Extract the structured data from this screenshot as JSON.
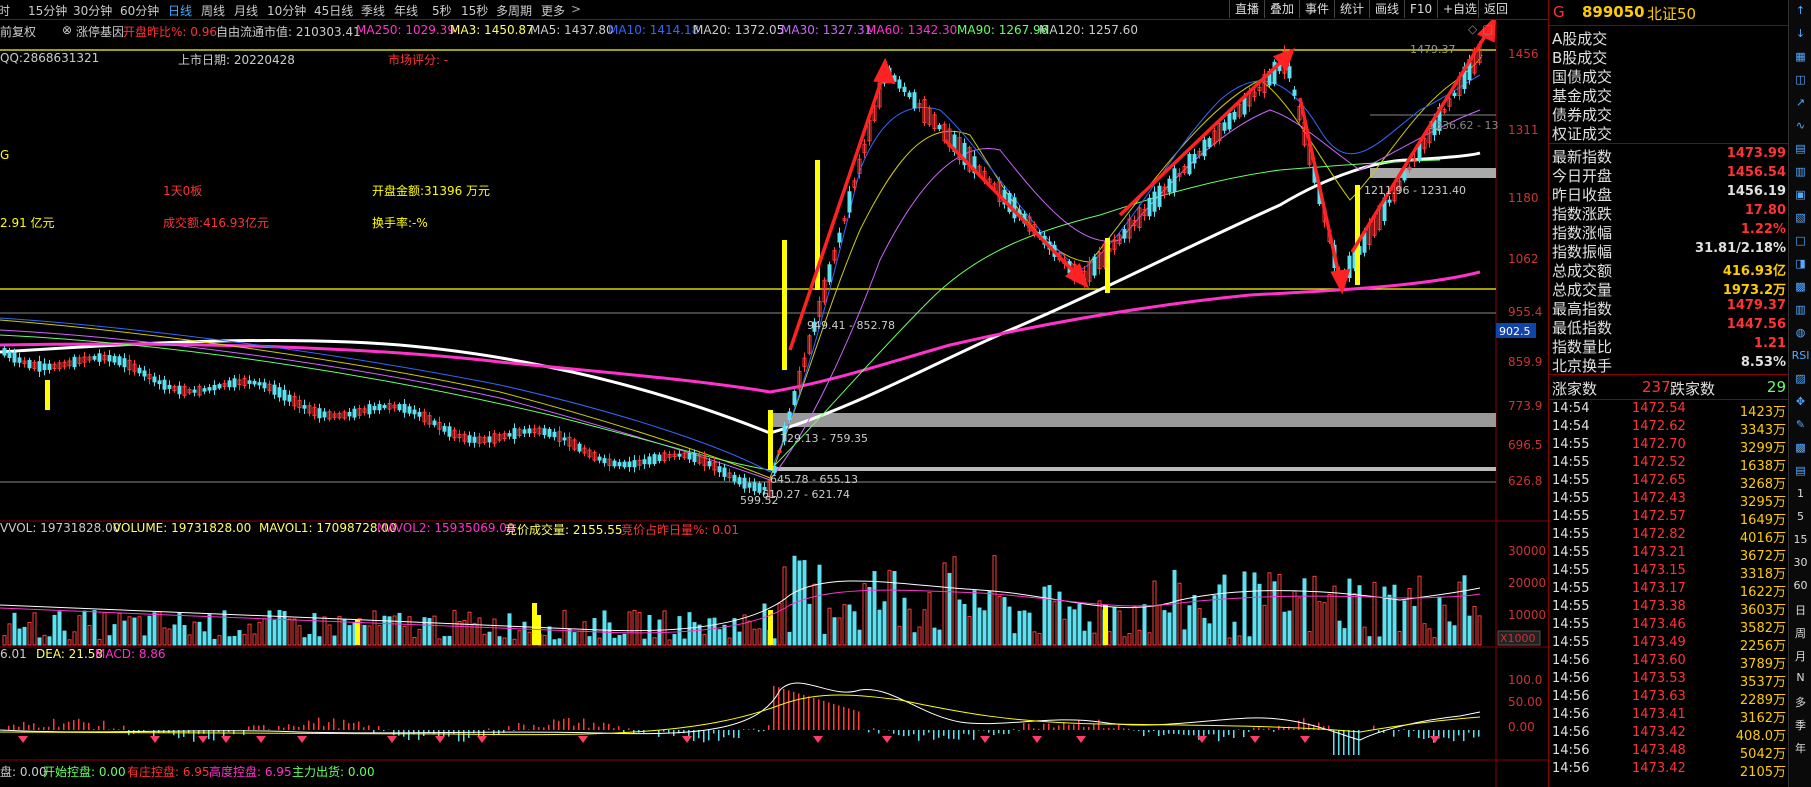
{
  "topbar": {
    "periods": [
      "分时",
      "15分钟",
      "30分钟",
      "60分钟",
      "日线",
      "周线",
      "月线",
      "10分钟",
      "45日线",
      "季线",
      "年线",
      "5秒",
      "15秒",
      "多周期",
      "更多"
    ],
    "active_period": "日线",
    "right_tabs": [
      "直播",
      "叠加",
      "事件",
      "统计",
      "画线",
      "F10",
      "+自选",
      "返回"
    ]
  },
  "info_row": {
    "adjust_label": "前复权",
    "stock_tag": "涨停基因",
    "open_change": "开盘昨比%: 0.96",
    "float_mv": "自由流通市值: 210303.41",
    "ma250": "MA250: 1029.39",
    "ma3": "MA3: 1450.87",
    "ma5": "MA5: 1437.80",
    "ma10": "MA10: 1414.18",
    "ma20": "MA20: 1372.05",
    "ma30": "MA30: 1327.31",
    "ma60": "MA60: 1342.30",
    "ma90": "MA90: 1267.96",
    "ma120": "MA120: 1257.60"
  },
  "info_left": {
    "qq": "QQ:2868631321",
    "listing_date": "上市日期: 20220428",
    "market_score": "市场评分: -",
    "g_letter": "G",
    "limit_board": "1天0板",
    "open_amount": "开盘金额:31396 万元",
    "float_cap": "2.91 亿元",
    "turnover_amount": "成交额:416.93亿元",
    "turnover_rate": "换手率:-%"
  },
  "chart_annotations": {
    "high_label": "1479.37",
    "label_1311": "1336.62 - 13",
    "label_1211": "1211.96 - 1231.40",
    "label_949": "949.41 - 852.78",
    "label_729": "729.13 - 759.35",
    "label_645": "645.78 - 655.13",
    "label_610": "610.27 - 621.74",
    "low_label": "599.52",
    "cursor_price": "902.5"
  },
  "price_axis": [
    "1456",
    "1311",
    "1180",
    "1062",
    "955.4",
    "859.9",
    "773.9",
    "696.5",
    "626.8"
  ],
  "volume_bar": {
    "vvol": "VVOL: 19731828.00",
    "volume": "VOLUME: 19731828.00",
    "mavol1": "MAVOL1: 17098728.00",
    "mavol2": "MAVOL2: 15935069.00",
    "auction_vol": "竞价成交量: 2155.55",
    "auction_ratio": "竞价占昨日量%: 0.01"
  },
  "volume_axis": [
    "30000",
    "20000",
    "10000",
    "X1000"
  ],
  "macd_bar": {
    "dif": "6.01",
    "dea": "DEA: 21.58",
    "macd": "MACD: 8.86"
  },
  "macd_axis": [
    "100.0",
    "50.00",
    "0.00"
  ],
  "bottom_bar": {
    "a": "盘: 0.00",
    "b": "开始控盘: 0.00",
    "c": "有庄控盘: 6.95",
    "d": "高度控盘: 6.95",
    "e": "主力出货: 0.00"
  },
  "sidebar": {
    "code": "899050",
    "name": "北证50",
    "g": "G",
    "deals": [
      "A股成交",
      "B股成交",
      "国债成交",
      "基金成交",
      "债券成交",
      "权证成交"
    ],
    "stats": [
      {
        "label": "最新指数",
        "value": "1473.99",
        "color": "#ff3333"
      },
      {
        "label": "今日开盘",
        "value": "1456.54",
        "color": "#ff3333"
      },
      {
        "label": "昨日收盘",
        "value": "1456.19",
        "color": "#e0e0e0"
      },
      {
        "label": "指数涨跌",
        "value": "17.80",
        "color": "#ff3333"
      },
      {
        "label": "指数涨幅",
        "value": "1.22%",
        "color": "#ff3333"
      },
      {
        "label": "指数振幅",
        "value": "31.81/2.18%",
        "color": "#e0e0e0"
      },
      {
        "label": "总成交额",
        "value": "416.93亿",
        "color": "#ffcc00"
      },
      {
        "label": "总成交量",
        "value": "1973.2万",
        "color": "#ffcc00"
      },
      {
        "label": "最高指数",
        "value": "1479.37",
        "color": "#ff3333"
      },
      {
        "label": "最低指数",
        "value": "1447.56",
        "color": "#ff3333"
      },
      {
        "label": "指数量比",
        "value": "1.21",
        "color": "#ff3333"
      },
      {
        "label": "北京换手",
        "value": "8.53%",
        "color": "#e0e0e0"
      }
    ],
    "advance_label": "涨家数",
    "advance": "237",
    "decline_label": "跌家数",
    "decline": "29",
    "ticks": [
      {
        "t": "14:54",
        "p": "1472.54",
        "v": "1423万"
      },
      {
        "t": "14:54",
        "p": "1472.62",
        "v": "3343万"
      },
      {
        "t": "14:55",
        "p": "1472.70",
        "v": "3299万"
      },
      {
        "t": "14:55",
        "p": "1472.52",
        "v": "1638万"
      },
      {
        "t": "14:55",
        "p": "1472.65",
        "v": "3268万"
      },
      {
        "t": "14:55",
        "p": "1472.43",
        "v": "3295万"
      },
      {
        "t": "14:55",
        "p": "1472.57",
        "v": "1649万"
      },
      {
        "t": "14:55",
        "p": "1472.82",
        "v": "4016万"
      },
      {
        "t": "14:55",
        "p": "1473.21",
        "v": "3672万"
      },
      {
        "t": "14:55",
        "p": "1473.15",
        "v": "3318万"
      },
      {
        "t": "14:55",
        "p": "1473.17",
        "v": "1622万"
      },
      {
        "t": "14:55",
        "p": "1473.38",
        "v": "3603万"
      },
      {
        "t": "14:55",
        "p": "1473.46",
        "v": "3582万"
      },
      {
        "t": "14:55",
        "p": "1473.49",
        "v": "2256万"
      },
      {
        "t": "14:56",
        "p": "1473.60",
        "v": "3789万"
      },
      {
        "t": "14:56",
        "p": "1473.53",
        "v": "3537万"
      },
      {
        "t": "14:56",
        "p": "1473.63",
        "v": "2289万"
      },
      {
        "t": "14:56",
        "p": "1473.41",
        "v": "3162万"
      },
      {
        "t": "14:56",
        "p": "1473.42",
        "v": "408.0万"
      },
      {
        "t": "14:56",
        "p": "1473.48",
        "v": "5042万"
      },
      {
        "t": "14:56",
        "p": "1473.42",
        "v": "2105万"
      }
    ]
  },
  "toolcol": {
    "tools": [
      "↑",
      "↓",
      "▦",
      "◫",
      "↗",
      "∿",
      "▤",
      "▥",
      "▣",
      "▧",
      "□",
      "◨",
      "▩",
      "▥",
      "◍",
      "RSI",
      "▨",
      "✥",
      "✎",
      "▩",
      "▤",
      "1",
      "5",
      "15",
      "30",
      "60",
      "日",
      "周",
      "月",
      "N",
      "多",
      "季",
      "年"
    ]
  }
}
